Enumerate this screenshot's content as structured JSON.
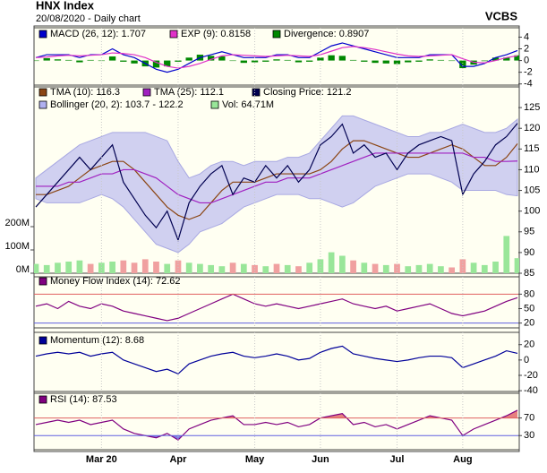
{
  "header": {
    "title": "HNX Index",
    "subtitle": "20/08/2020 - Daily chart",
    "source": "VCBS"
  },
  "chart_data": [
    {
      "type": "line",
      "ylim": [
        -4.2,
        5.6
      ],
      "yticks": [
        4,
        2,
        0,
        -2,
        -4
      ],
      "series": [
        {
          "name": "MACD (26, 12): 1.707",
          "type": "line",
          "color": "#0000cc",
          "values": [
            0.5,
            1,
            1,
            1,
            0.5,
            1,
            1,
            2,
            1,
            0.5,
            -0.5,
            -1.5,
            -2,
            -1.5,
            -0.5,
            0.5,
            1,
            1.5,
            1,
            0.5,
            0.5,
            0.5,
            1,
            1,
            0.5,
            0.5,
            1.5,
            2.5,
            3,
            2.5,
            2,
            1.5,
            1,
            0.5,
            0.5,
            0.5,
            1,
            1,
            1,
            -1,
            -1,
            -0.5,
            0.5,
            1,
            1.707
          ]
        },
        {
          "name": "EXP (9): 0.8158",
          "type": "line",
          "color": "#e030c8",
          "values": [
            0.5,
            0.6,
            0.8,
            0.9,
            0.8,
            0.9,
            1,
            1.3,
            1.2,
            1,
            0.5,
            -0.3,
            -1,
            -1.3,
            -1,
            -0.5,
            0.2,
            0.8,
            1,
            0.9,
            0.8,
            0.7,
            0.8,
            0.9,
            0.8,
            0.7,
            1,
            1.6,
            2.2,
            2.4,
            2.2,
            1.9,
            1.5,
            1.1,
            0.8,
            0.7,
            0.8,
            0.9,
            1,
            0.3,
            -0.3,
            -0.4,
            0,
            0.5,
            0.8158
          ]
        },
        {
          "name": "Divergence: 0.8907",
          "type": "bar",
          "color": "#008800",
          "values": [
            0,
            0.4,
            0.2,
            0.1,
            -0.3,
            0.1,
            0,
            0.7,
            -0.2,
            -0.5,
            -1,
            -1.2,
            -1,
            -0.2,
            0.5,
            1,
            0.8,
            0.7,
            0,
            -0.4,
            -0.3,
            -0.2,
            0.2,
            0.1,
            -0.3,
            -0.2,
            0.5,
            0.9,
            0.8,
            0.1,
            -0.2,
            -0.4,
            -0.5,
            -0.6,
            -0.3,
            -0.2,
            0.2,
            0.1,
            0,
            -1.3,
            -0.7,
            -0.1,
            0.5,
            0.5,
            0.8907
          ]
        }
      ]
    },
    {
      "type": "line",
      "ylim": [
        85,
        130
      ],
      "yticks": [
        125,
        120,
        115,
        110,
        105,
        100,
        95,
        90,
        85
      ],
      "y2lim": [
        0,
        800
      ],
      "y2ticks": [
        {
          "value": 200,
          "label": "200M"
        },
        {
          "value": 100,
          "label": "100M"
        },
        {
          "value": 0,
          "label": "0M"
        }
      ],
      "series": [
        {
          "name": "TMA (10): 116.3",
          "type": "line",
          "color": "#8b4513",
          "values": [
            104,
            104,
            105,
            106,
            108,
            110,
            111,
            112,
            112,
            110,
            107,
            104,
            101,
            99,
            98,
            99,
            102,
            105,
            107,
            107,
            107,
            108,
            109,
            109,
            109,
            109,
            110,
            112,
            115,
            117,
            117,
            116,
            115,
            114,
            113,
            113,
            114,
            115,
            116,
            115,
            113,
            111,
            111,
            113,
            116.3
          ]
        },
        {
          "name": "TMA (25): 112.1",
          "type": "line",
          "color": "#a020c0",
          "values": [
            106,
            106,
            106,
            107,
            107,
            108,
            109,
            109,
            110,
            110,
            109,
            108,
            106,
            104,
            103,
            102,
            102,
            103,
            104,
            105,
            106,
            107,
            107,
            108,
            108,
            108,
            109,
            110,
            111,
            112,
            113,
            114,
            114,
            114,
            114,
            114,
            114,
            114,
            114,
            114,
            113,
            113,
            112,
            112,
            112.1
          ]
        },
        {
          "name": "Closing Price: 121.2",
          "type": "line",
          "color": "#000050",
          "values": [
            101,
            104,
            107,
            110,
            113,
            110,
            113,
            116,
            107,
            103,
            99,
            96,
            100,
            93,
            102,
            106,
            109,
            111,
            104,
            108,
            107,
            111,
            108,
            111,
            107,
            110,
            116,
            118,
            121,
            114,
            116,
            113,
            114,
            110,
            114,
            116,
            117,
            118,
            117,
            104,
            109,
            112,
            116,
            118,
            121.2
          ]
        },
        {
          "name": "Bollinger (20, 2): 103.7 - 122.2",
          "type": "band",
          "color": "#c8c8f0",
          "upper": [
            108,
            110,
            112,
            114,
            116,
            117,
            118,
            119,
            119,
            119,
            119,
            118,
            117,
            112,
            108,
            109,
            111,
            112,
            112,
            111,
            112,
            112,
            112,
            113,
            113,
            114,
            117,
            120,
            123,
            123,
            122,
            121,
            120,
            119,
            118,
            118,
            119,
            119,
            120,
            121,
            120,
            119,
            119,
            120,
            122.2
          ],
          "lower": [
            103,
            102,
            102,
            102,
            102,
            103,
            104,
            103,
            101,
            98,
            95,
            92,
            91,
            90,
            92,
            95,
            96,
            97,
            99,
            101,
            102,
            103,
            104,
            104,
            104,
            103,
            103,
            102,
            101,
            102,
            104,
            106,
            107,
            108,
            109,
            109,
            109,
            108,
            107,
            105,
            105,
            105,
            105,
            104,
            103.7
          ]
        },
        {
          "name": "Vol: 64.71M",
          "type": "bar",
          "axis": "y2",
          "color": "#99e699",
          "down_color": "#f0a0a0",
          "values": [
            40,
            35,
            45,
            50,
            55,
            40,
            45,
            50,
            55,
            45,
            60,
            50,
            40,
            55,
            45,
            40,
            35,
            30,
            45,
            40,
            35,
            30,
            40,
            35,
            30,
            45,
            60,
            90,
            75,
            55,
            45,
            40,
            35,
            40,
            30,
            35,
            40,
            30,
            25,
            60,
            45,
            35,
            50,
            160,
            64.71
          ]
        }
      ]
    },
    {
      "type": "line",
      "ylim": [
        10,
        116
      ],
      "yticks": [
        80,
        50,
        20
      ],
      "levels": [
        {
          "value": 80,
          "color": "#e06060"
        },
        {
          "value": 20,
          "color": "#6060e0"
        }
      ],
      "series": [
        {
          "name": "Money Flow Index (14): 72.62",
          "type": "line",
          "color": "#800080",
          "values": [
            55,
            60,
            50,
            65,
            55,
            50,
            60,
            55,
            45,
            40,
            35,
            30,
            25,
            30,
            40,
            50,
            60,
            70,
            80,
            70,
            60,
            55,
            60,
            55,
            50,
            55,
            60,
            65,
            70,
            60,
            55,
            50,
            55,
            45,
            50,
            55,
            60,
            50,
            40,
            35,
            40,
            45,
            55,
            65,
            72.62
          ]
        }
      ]
    },
    {
      "type": "line",
      "ylim": [
        -41,
        36
      ],
      "yticks": [
        20,
        0,
        -20,
        -40
      ],
      "series": [
        {
          "name": "Momentum (12): 8.68",
          "type": "line",
          "color": "#000099",
          "values": [
            5,
            8,
            10,
            8,
            10,
            5,
            8,
            10,
            0,
            -5,
            -10,
            -15,
            -12,
            -18,
            -5,
            0,
            5,
            8,
            10,
            5,
            3,
            5,
            8,
            5,
            0,
            2,
            10,
            15,
            18,
            8,
            5,
            2,
            0,
            -2,
            0,
            3,
            5,
            5,
            3,
            -10,
            -5,
            0,
            5,
            12,
            8.68
          ]
        }
      ]
    },
    {
      "type": "line",
      "ylim": [
        -2,
        126
      ],
      "yticks": [
        70,
        30
      ],
      "levels": [
        {
          "value": 70,
          "color": "#e06060",
          "fill": "above"
        },
        {
          "value": 30,
          "color": "#6060e0",
          "fill": "below"
        }
      ],
      "categories": [
        null,
        null,
        null,
        null,
        null,
        null,
        "Mar 20",
        null,
        null,
        null,
        null,
        null,
        null,
        "Apr",
        null,
        null,
        null,
        null,
        null,
        null,
        "May",
        null,
        null,
        null,
        null,
        null,
        "Jun",
        null,
        null,
        null,
        null,
        null,
        null,
        "Jul",
        null,
        null,
        null,
        null,
        null,
        "Aug",
        null,
        null,
        null,
        null,
        null
      ],
      "series": [
        {
          "name": "RSI (14): 87.53",
          "type": "line",
          "color": "#800080",
          "values": [
            55,
            60,
            65,
            60,
            65,
            55,
            60,
            65,
            45,
            35,
            30,
            25,
            35,
            20,
            45,
            55,
            65,
            70,
            75,
            55,
            55,
            60,
            55,
            60,
            50,
            55,
            70,
            75,
            80,
            55,
            60,
            50,
            55,
            45,
            55,
            65,
            75,
            70,
            65,
            30,
            45,
            55,
            65,
            75,
            87.53
          ]
        }
      ]
    }
  ]
}
